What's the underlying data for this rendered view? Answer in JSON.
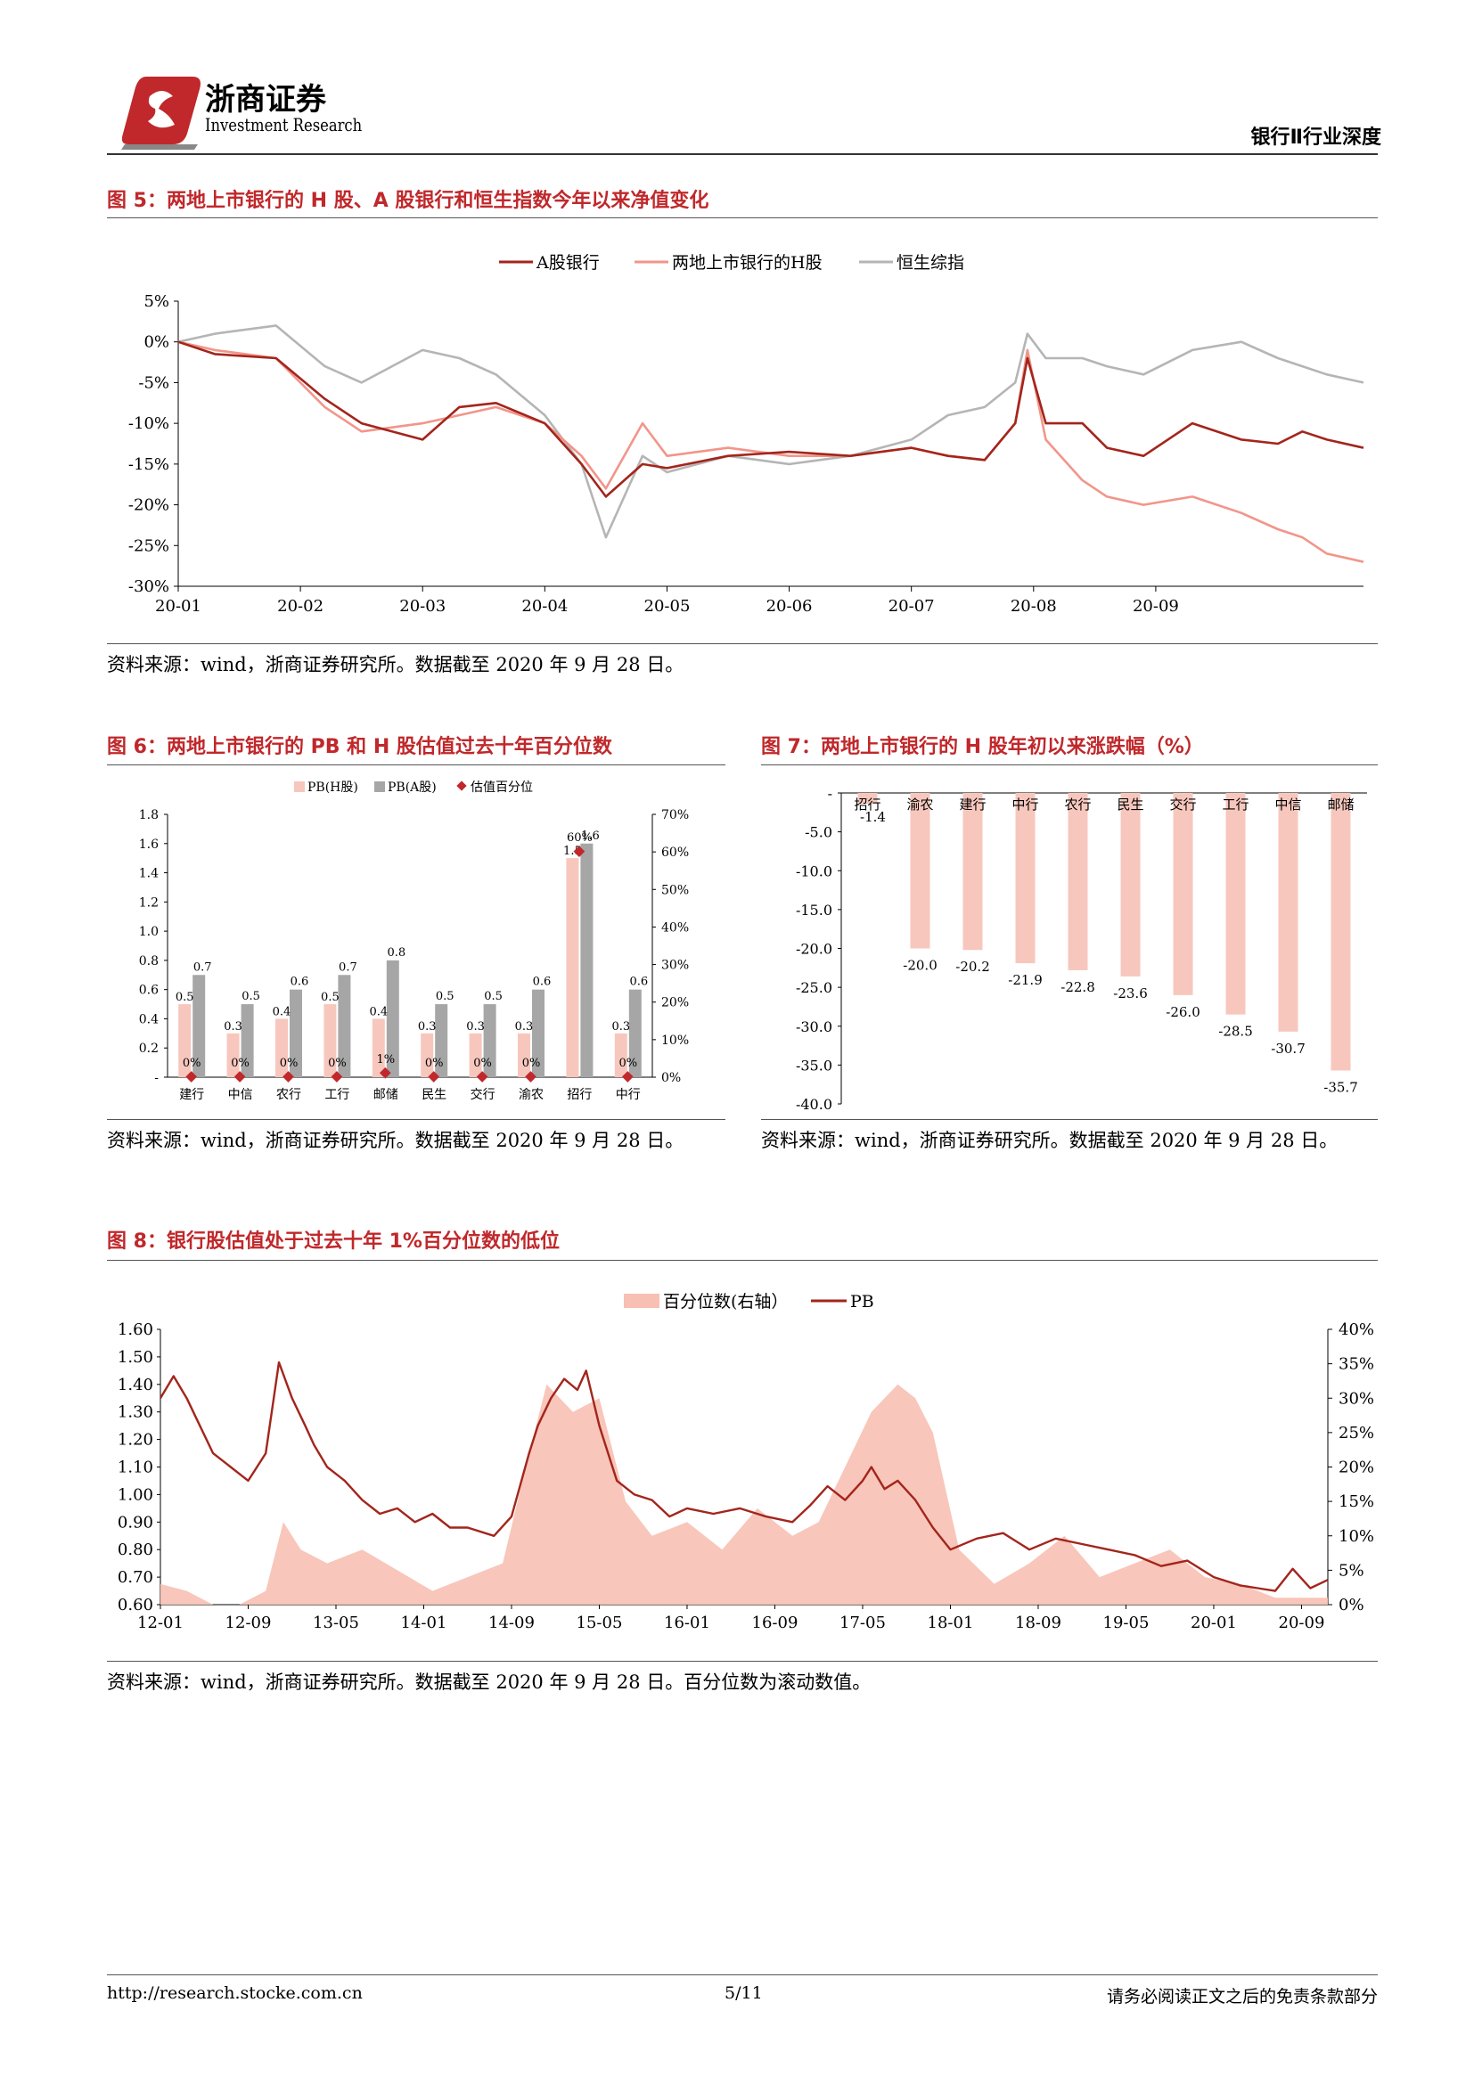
{
  "header": {
    "logo_cn": "浙商证券",
    "logo_en": "Investment Research",
    "section": "银行Ⅱ行业深度"
  },
  "fig5": {
    "title": "图 5：两地上市银行的 H 股、A 股银行和恒生指数今年以来净值变化",
    "source": "资料来源：wind，浙商证券研究所。数据截至 2020 年 9 月 28 日。",
    "chart_data": {
      "type": "line",
      "legend": [
        "A股银行",
        "两地上市银行的H股",
        "恒生综指"
      ],
      "legend_position": "top",
      "x_ticks": [
        "20-01",
        "20-02",
        "20-03",
        "20-04",
        "20-05",
        "20-06",
        "20-07",
        "20-08",
        "20-09"
      ],
      "y_ticks": [
        "5%",
        "0%",
        "-5%",
        "-10%",
        "-15%",
        "-20%",
        "-25%",
        "-30%"
      ],
      "ylim": [
        -30,
        5
      ],
      "colors": {
        "a_bank": "#a3251c",
        "h_share": "#f2958a",
        "hsci": "#b5b5b5"
      },
      "series": [
        {
          "name": "A股银行",
          "x": [
            0,
            0.3,
            0.8,
            1.2,
            1.5,
            2,
            2.3,
            2.6,
            3,
            3.3,
            3.5,
            3.8,
            4,
            4.5,
            5,
            5.5,
            6,
            6.3,
            6.6,
            6.85,
            6.95,
            7.1,
            7.4,
            7.6,
            7.9,
            8.3,
            8.7,
            9,
            9.2,
            9.4,
            9.7
          ],
          "y": [
            0,
            -1.5,
            -2,
            -7,
            -10,
            -12,
            -8,
            -7.5,
            -10,
            -15,
            -19,
            -15,
            -15.5,
            -14,
            -13.5,
            -14,
            -13,
            -14,
            -14.5,
            -10,
            -2,
            -10,
            -10,
            -13,
            -14,
            -10,
            -12,
            -12.5,
            -11,
            -12,
            -13
          ]
        },
        {
          "name": "两地上市银行的H股",
          "x": [
            0,
            0.3,
            0.8,
            1.2,
            1.5,
            2,
            2.3,
            2.6,
            3,
            3.3,
            3.5,
            3.8,
            4,
            4.5,
            5,
            5.5,
            6,
            6.3,
            6.6,
            6.85,
            6.95,
            7.1,
            7.4,
            7.6,
            7.9,
            8.3,
            8.7,
            9,
            9.2,
            9.4,
            9.7
          ],
          "y": [
            0,
            -1,
            -2,
            -8,
            -11,
            -10,
            -9,
            -8,
            -10,
            -14,
            -18,
            -10,
            -14,
            -13,
            -14,
            -14,
            -13,
            -14,
            -14.5,
            -10,
            -1,
            -12,
            -17,
            -19,
            -20,
            -19,
            -21,
            -23,
            -24,
            -26,
            -27
          ]
        },
        {
          "name": "恒生综指",
          "x": [
            0,
            0.3,
            0.8,
            1.2,
            1.5,
            2,
            2.3,
            2.6,
            3,
            3.3,
            3.5,
            3.8,
            4,
            4.5,
            5,
            5.5,
            6,
            6.3,
            6.6,
            6.85,
            6.95,
            7.1,
            7.4,
            7.6,
            7.9,
            8.3,
            8.7,
            9,
            9.2,
            9.4,
            9.7
          ],
          "y": [
            0,
            1,
            2,
            -3,
            -5,
            -1,
            -2,
            -4,
            -9,
            -15,
            -24,
            -14,
            -16,
            -14,
            -15,
            -14,
            -12,
            -9,
            -8,
            -5,
            1,
            -2,
            -2,
            -3,
            -4,
            -1,
            0,
            -2,
            -3,
            -4,
            -5
          ]
        }
      ]
    }
  },
  "fig6": {
    "title": "图 6：两地上市银行的 PB 和 H 股估值过去十年百分位数",
    "source": "资料来源：wind，浙商证券研究所。数据截至 2020 年 9 月 28 日。",
    "chart_data": {
      "type": "bar",
      "legend": [
        "PB(H股)",
        "PB(A股)",
        "估值百分位"
      ],
      "categories": [
        "建行",
        "中信",
        "农行",
        "工行",
        "邮储",
        "民生",
        "交行",
        "渝农",
        "招行",
        "中行"
      ],
      "pb_h": [
        0.5,
        0.3,
        0.4,
        0.5,
        0.4,
        0.3,
        0.3,
        0.3,
        1.5,
        0.3
      ],
      "pb_a": [
        0.7,
        0.5,
        0.6,
        0.7,
        0.8,
        0.5,
        0.5,
        0.6,
        1.6,
        0.6
      ],
      "pct_labels": [
        "0%",
        "0%",
        "0%",
        "0%",
        "1%",
        "0%",
        "0%",
        "0%",
        "60%",
        "0%"
      ],
      "pct_values": [
        0,
        0,
        0,
        0,
        1,
        0,
        0,
        0,
        60,
        0
      ],
      "y_left_ticks": [
        "1.8",
        "1.6",
        "1.4",
        "1.2",
        "1.0",
        "0.8",
        "0.6",
        "0.4",
        "0.2",
        "-"
      ],
      "y_right_ticks": [
        "70%",
        "60%",
        "50%",
        "40%",
        "30%",
        "20%",
        "10%",
        "0%"
      ],
      "ylim_left": [
        0,
        1.8
      ],
      "ylim_right": [
        0,
        70
      ],
      "colors": {
        "pb_h": "#f7c7bd",
        "pb_a": "#a6a6a6",
        "pct": "#c0282b"
      }
    }
  },
  "fig7": {
    "title": "图 7：两地上市银行的 H 股年初以来涨跌幅（%）",
    "source": "资料来源：wind，浙商证券研究所。数据截至 2020 年 9 月 28 日。",
    "chart_data": {
      "type": "bar",
      "categories": [
        "招行",
        "渝农",
        "建行",
        "中行",
        "农行",
        "民生",
        "交行",
        "工行",
        "中信",
        "邮储"
      ],
      "values": [
        -1.4,
        -20.0,
        -20.2,
        -21.9,
        -22.8,
        -23.6,
        -26.0,
        -28.5,
        -30.7,
        -35.7
      ],
      "value_labels": [
        "-1.4",
        "-20.0",
        "-20.2",
        "-21.9",
        "-22.8",
        "-23.6",
        "-26.0",
        "-28.5",
        "-30.7",
        "-35.7"
      ],
      "y_ticks": [
        "-",
        "-5.0",
        "-10.0",
        "-15.0",
        "-20.0",
        "-25.0",
        "-30.0",
        "-35.0",
        "-40.0"
      ],
      "ylim": [
        -40,
        0
      ],
      "colors": {
        "bar": "#f7c7bd"
      }
    }
  },
  "fig8": {
    "title": "图 8：银行股估值处于过去十年 1%百分位数的低位",
    "source": "资料来源：wind，浙商证券研究所。数据截至 2020 年 9 月 28 日。百分位数为滚动数值。",
    "chart_data": {
      "type": "area",
      "legend": [
        "百分位数(右轴）",
        "PB"
      ],
      "x_ticks": [
        "12-01",
        "12-09",
        "13-05",
        "14-01",
        "14-09",
        "15-05",
        "16-01",
        "16-09",
        "17-05",
        "18-01",
        "18-09",
        "19-05",
        "20-01",
        "20-09"
      ],
      "y_left_ticks": [
        "1.60",
        "1.50",
        "1.40",
        "1.30",
        "1.20",
        "1.10",
        "1.00",
        "0.90",
        "0.80",
        "0.70",
        "0.60"
      ],
      "y_right_ticks": [
        "40%",
        "35%",
        "30%",
        "25%",
        "20%",
        "15%",
        "10%",
        "5%",
        "0%"
      ],
      "ylim_left": [
        0.6,
        1.6
      ],
      "ylim_right": [
        0,
        40
      ],
      "colors": {
        "pb": "#a3251c",
        "pct": "#f7c0b3"
      },
      "series": [
        {
          "name": "PB",
          "x": [
            0,
            0.15,
            0.3,
            0.45,
            0.6,
            0.8,
            1.0,
            1.2,
            1.35,
            1.5,
            1.65,
            1.75,
            1.9,
            2.1,
            2.3,
            2.5,
            2.7,
            2.9,
            3.1,
            3.3,
            3.5,
            3.8,
            4.0,
            4.2,
            4.3,
            4.45,
            4.6,
            4.75,
            4.85,
            5.0,
            5.2,
            5.4,
            5.6,
            5.8,
            6.0,
            6.3,
            6.6,
            6.9,
            7.2,
            7.4,
            7.6,
            7.8,
            8.0,
            8.1,
            8.25,
            8.4,
            8.6,
            8.8,
            9.0,
            9.3,
            9.6,
            9.9,
            10.2,
            10.5,
            10.8,
            11.1,
            11.4,
            11.7,
            12.0,
            12.3,
            12.5,
            12.7,
            12.9,
            13.1,
            13.3
          ],
          "y": [
            1.35,
            1.43,
            1.35,
            1.25,
            1.15,
            1.1,
            1.05,
            1.15,
            1.48,
            1.35,
            1.25,
            1.18,
            1.1,
            1.05,
            0.98,
            0.93,
            0.95,
            0.9,
            0.93,
            0.88,
            0.88,
            0.85,
            0.92,
            1.15,
            1.25,
            1.35,
            1.42,
            1.38,
            1.45,
            1.25,
            1.05,
            1.0,
            0.98,
            0.92,
            0.95,
            0.93,
            0.95,
            0.92,
            0.9,
            0.96,
            1.03,
            0.98,
            1.05,
            1.1,
            1.02,
            1.05,
            0.98,
            0.88,
            0.8,
            0.84,
            0.86,
            0.8,
            0.84,
            0.82,
            0.8,
            0.78,
            0.74,
            0.76,
            0.7,
            0.67,
            0.66,
            0.65,
            0.73,
            0.66,
            0.69
          ]
        },
        {
          "name": "百分位数(右轴）",
          "x": [
            0,
            0.3,
            0.6,
            0.9,
            1.2,
            1.4,
            1.6,
            1.9,
            2.3,
            2.7,
            3.1,
            3.5,
            3.9,
            4.2,
            4.4,
            4.7,
            5.0,
            5.3,
            5.6,
            6.0,
            6.4,
            6.8,
            7.2,
            7.5,
            7.8,
            8.1,
            8.4,
            8.6,
            8.8,
            9.1,
            9.5,
            9.9,
            10.3,
            10.7,
            11.1,
            11.5,
            11.9,
            12.3,
            12.7,
            13.1,
            13.3
          ],
          "y": [
            3,
            2,
            0,
            0,
            2,
            12,
            8,
            6,
            8,
            5,
            2,
            4,
            6,
            22,
            32,
            28,
            30,
            15,
            10,
            12,
            8,
            14,
            10,
            12,
            20,
            28,
            32,
            30,
            25,
            8,
            3,
            6,
            10,
            4,
            6,
            8,
            4,
            3,
            1,
            1,
            1
          ]
        }
      ]
    }
  },
  "footer": {
    "url": "http://research.stocke.com.cn",
    "page": "5/11",
    "disclaimer": "请务必阅读正文之后的免责条款部分"
  }
}
